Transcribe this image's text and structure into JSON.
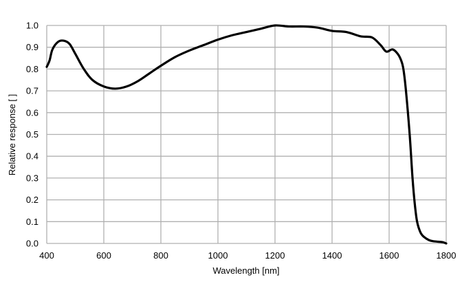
{
  "chart_data": {
    "type": "line",
    "title": "",
    "xlabel": "Wavelength [nm]",
    "ylabel": "Relative response [ ]",
    "xlim": [
      400,
      1800
    ],
    "ylim": [
      0,
      1.0
    ],
    "grid": true,
    "line_color": "#000000",
    "grid_color": "#b0b0b0",
    "x_ticks": [
      400,
      600,
      800,
      1000,
      1200,
      1400,
      1600,
      1800
    ],
    "y_ticks": [
      "0.0",
      "0.1",
      "0.2",
      "0.3",
      "0.4",
      "0.5",
      "0.6",
      "0.7",
      "0.8",
      "0.9",
      "1.0"
    ],
    "series": [
      {
        "x": [
          400,
          410,
          420,
          440,
          460,
          480,
          500,
          530,
          560,
          600,
          640,
          680,
          720,
          760,
          800,
          850,
          900,
          950,
          1000,
          1050,
          1100,
          1150,
          1200,
          1250,
          1300,
          1350,
          1400,
          1450,
          1500,
          1540,
          1570,
          1590,
          1612,
          1630,
          1642,
          1650,
          1659,
          1672,
          1682,
          1690,
          1698,
          1710,
          1722,
          1740,
          1755,
          1780,
          1790,
          1800
        ],
        "y": [
          0.81,
          0.84,
          0.89,
          0.925,
          0.93,
          0.915,
          0.87,
          0.8,
          0.75,
          0.72,
          0.71,
          0.72,
          0.745,
          0.78,
          0.815,
          0.855,
          0.885,
          0.91,
          0.935,
          0.955,
          0.97,
          0.985,
          1.0,
          0.995,
          0.995,
          0.99,
          0.975,
          0.97,
          0.95,
          0.945,
          0.91,
          0.88,
          0.89,
          0.87,
          0.84,
          0.8,
          0.7,
          0.5,
          0.3,
          0.18,
          0.1,
          0.05,
          0.03,
          0.015,
          0.01,
          0.007,
          0.005,
          0.0
        ]
      }
    ]
  }
}
